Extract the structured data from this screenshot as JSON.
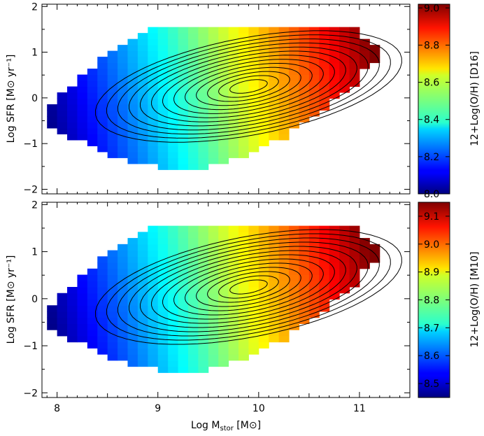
{
  "chart_data": [
    {
      "type": "heatmap",
      "panel": "top",
      "title": "",
      "xlabel": "",
      "ylabel": "Log SFR [M⊙ yr⁻¹]",
      "xlim": [
        7.85,
        11.5
      ],
      "ylim": [
        -2.1,
        2.05
      ],
      "x_ticks": [
        8,
        9,
        10,
        11
      ],
      "y_ticks": [
        -2,
        -1,
        0,
        1,
        2
      ],
      "y_tick_labels": [
        "−2",
        "−1",
        "0",
        "1",
        "2"
      ],
      "colorbar": {
        "label": "12+Log(O/H) [D16]",
        "range": [
          8.0,
          9.02
        ],
        "ticks": [
          8.0,
          8.2,
          8.4,
          8.6,
          8.8,
          9.0
        ],
        "tick_labels": [
          "8.0",
          "8.2",
          "8.4",
          "8.6",
          "8.8",
          "9.0"
        ]
      },
      "grid": false,
      "legend": "none",
      "description_of_values": "Median metallicity per (Log M*, Log SFR) cell; increases mainly with stellar mass (~8.05 at Log M*=8 to ~8.95 at Log M*=11) and weakly with SFR; density contours overlaid."
    },
    {
      "type": "heatmap",
      "panel": "bottom",
      "title": "",
      "xlabel": "Log M_stor [M⊙]",
      "ylabel": "Log SFR [M⊙ yr⁻¹]",
      "xlim": [
        7.85,
        11.5
      ],
      "ylim": [
        -2.1,
        2.05
      ],
      "x_ticks": [
        8,
        9,
        10,
        11
      ],
      "y_ticks": [
        -2,
        -1,
        0,
        1,
        2
      ],
      "y_tick_labels": [
        "−2",
        "−1",
        "0",
        "1",
        "2"
      ],
      "colorbar": {
        "label": "12+Log(O/H) [M10]",
        "range": [
          8.45,
          9.15
        ],
        "ticks": [
          8.5,
          8.6,
          8.7,
          8.8,
          8.9,
          9.0,
          9.1
        ],
        "tick_labels": [
          "8.5",
          "8.6",
          "8.7",
          "8.8",
          "8.9",
          "9.0",
          "9.1"
        ]
      },
      "grid": false,
      "legend": "none",
      "description_of_values": "Median metallicity per (Log M*, Log SFR) cell; ranges ~8.48 at low mass to ~9.10 at high mass; density contours overlaid."
    }
  ],
  "xlabel_parts": {
    "main": "Log M",
    "sub": "stor",
    "unit": " [M⊙]"
  },
  "x_tick_labels": [
    "8",
    "9",
    "10",
    "11"
  ]
}
